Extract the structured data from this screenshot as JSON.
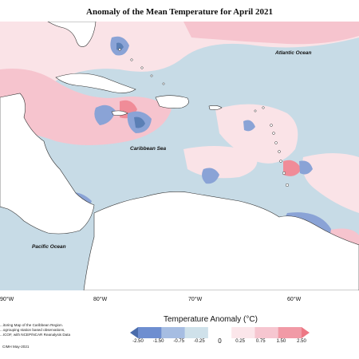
{
  "title": "Anomaly of the Mean Temperature for April 2021",
  "map": {
    "ocean_labels": {
      "atlantic": "Atlantic Ocean",
      "caribbean": "Caribbean Sea",
      "pacific": "Pacific Ocean"
    },
    "longitude_ticks": [
      "90°W",
      "80°W",
      "70°W",
      "60°W"
    ],
    "colors": {
      "land": "#ffffff",
      "coast": "#333333",
      "deep_cold": "#5b7fb5",
      "mid_cold": "#8aa3d6",
      "light_cold": "#c7dbe6",
      "light_warm": "#fae3e7",
      "warm": "#f6c4ce",
      "hot": "#f08c98"
    }
  },
  "legend": {
    "title": "Temperature Anomaly (°C)",
    "labels": [
      "-2.50",
      "-1.50",
      "-0.75",
      "-0.25",
      "0",
      "0.25",
      "0.75",
      "1.50",
      "2.50"
    ],
    "colors": [
      "#4a6cab",
      "#6e8ed0",
      "#a6bde2",
      "#cfe1ea",
      "#ffffff",
      "#fbe6ea",
      "#f6c6d0",
      "#f19aa6",
      "#ed7784"
    ]
  },
  "footnote": {
    "lines": [
      "...itoring Map of the Caribbean Region.",
      "...ogrouping station based observations,",
      "...ICOF, with NCEP/NCAR Reanalysis Data"
    ],
    "credit": "CIMH May-2021"
  }
}
